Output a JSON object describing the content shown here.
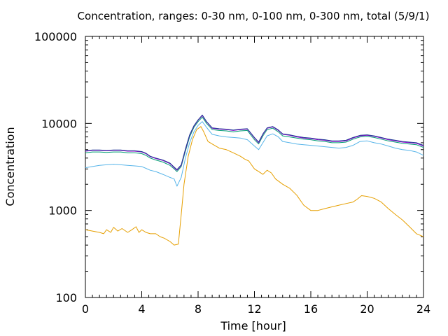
{
  "chart_data": {
    "type": "line",
    "title": "Concentration, ranges: 0-30 nm, 0-100 nm, 0-300 nm, total (5/9/1)",
    "xlabel": "Time [hour]",
    "ylabel": "Concentration",
    "xlim": [
      0,
      24
    ],
    "ylim": [
      100,
      100000
    ],
    "yscale": "log",
    "grid": false,
    "xticks": [
      0,
      4,
      8,
      12,
      16,
      20,
      24
    ],
    "xtick_labels": [
      "0",
      "4",
      "8",
      "12",
      "16",
      "20",
      "24"
    ],
    "yticks": [
      100,
      1000,
      10000,
      100000
    ],
    "ytick_labels": [
      "100",
      "1000",
      "10000",
      "100000"
    ],
    "series": [
      {
        "color": "#e69f00",
        "points": [
          [
            0,
            600
          ],
          [
            0.5,
            580
          ],
          [
            1,
            560
          ],
          [
            1.3,
            540
          ],
          [
            1.5,
            600
          ],
          [
            1.8,
            560
          ],
          [
            2,
            640
          ],
          [
            2.3,
            580
          ],
          [
            2.6,
            620
          ],
          [
            3,
            560
          ],
          [
            3.3,
            600
          ],
          [
            3.6,
            650
          ],
          [
            3.8,
            560
          ],
          [
            4,
            600
          ],
          [
            4.3,
            560
          ],
          [
            4.6,
            540
          ],
          [
            5,
            540
          ],
          [
            5.3,
            500
          ],
          [
            5.6,
            480
          ],
          [
            6,
            440
          ],
          [
            6.3,
            400
          ],
          [
            6.6,
            410
          ],
          [
            6.8,
            900
          ],
          [
            7,
            2000
          ],
          [
            7.3,
            4200
          ],
          [
            7.6,
            6500
          ],
          [
            7.9,
            8500
          ],
          [
            8.2,
            9200
          ],
          [
            8.4,
            8000
          ],
          [
            8.7,
            6200
          ],
          [
            9,
            5800
          ],
          [
            9.5,
            5200
          ],
          [
            10,
            5000
          ],
          [
            10.5,
            4600
          ],
          [
            11,
            4200
          ],
          [
            11.3,
            3900
          ],
          [
            11.6,
            3700
          ],
          [
            12,
            3000
          ],
          [
            12.3,
            2800
          ],
          [
            12.6,
            2600
          ],
          [
            12.9,
            2900
          ],
          [
            13.2,
            2700
          ],
          [
            13.5,
            2300
          ],
          [
            14,
            2000
          ],
          [
            14.5,
            1800
          ],
          [
            15,
            1500
          ],
          [
            15.5,
            1150
          ],
          [
            16,
            1000
          ],
          [
            16.5,
            1000
          ],
          [
            17,
            1050
          ],
          [
            17.5,
            1100
          ],
          [
            18,
            1150
          ],
          [
            18.5,
            1200
          ],
          [
            19,
            1250
          ],
          [
            19.3,
            1350
          ],
          [
            19.6,
            1480
          ],
          [
            20,
            1450
          ],
          [
            20.5,
            1380
          ],
          [
            21,
            1250
          ],
          [
            21.5,
            1050
          ],
          [
            22,
            900
          ],
          [
            22.5,
            780
          ],
          [
            23,
            650
          ],
          [
            23.5,
            540
          ],
          [
            24,
            500
          ]
        ]
      },
      {
        "color": "#56b4e9",
        "points": [
          [
            0,
            3100
          ],
          [
            0.5,
            3200
          ],
          [
            1,
            3300
          ],
          [
            1.5,
            3350
          ],
          [
            2,
            3400
          ],
          [
            2.5,
            3350
          ],
          [
            3,
            3300
          ],
          [
            3.5,
            3250
          ],
          [
            4,
            3200
          ],
          [
            4.3,
            3050
          ],
          [
            4.6,
            2900
          ],
          [
            5,
            2800
          ],
          [
            5.5,
            2600
          ],
          [
            6,
            2400
          ],
          [
            6.3,
            2300
          ],
          [
            6.5,
            1900
          ],
          [
            6.8,
            2400
          ],
          [
            7.1,
            4000
          ],
          [
            7.4,
            6000
          ],
          [
            7.7,
            8000
          ],
          [
            8,
            9500
          ],
          [
            8.3,
            10500
          ],
          [
            8.6,
            9000
          ],
          [
            9,
            7500
          ],
          [
            9.5,
            7200
          ],
          [
            10,
            7000
          ],
          [
            10.5,
            6900
          ],
          [
            11,
            6800
          ],
          [
            11.5,
            6500
          ],
          [
            12,
            5500
          ],
          [
            12.3,
            5000
          ],
          [
            12.6,
            6000
          ],
          [
            12.9,
            7200
          ],
          [
            13.3,
            7600
          ],
          [
            13.7,
            7000
          ],
          [
            14,
            6200
          ],
          [
            14.5,
            6000
          ],
          [
            15,
            5800
          ],
          [
            15.5,
            5700
          ],
          [
            16,
            5600
          ],
          [
            16.5,
            5500
          ],
          [
            17,
            5400
          ],
          [
            17.5,
            5300
          ],
          [
            18,
            5200
          ],
          [
            18.5,
            5300
          ],
          [
            19,
            5600
          ],
          [
            19.5,
            6200
          ],
          [
            20,
            6300
          ],
          [
            20.5,
            6000
          ],
          [
            21,
            5800
          ],
          [
            21.5,
            5500
          ],
          [
            22,
            5200
          ],
          [
            22.5,
            5000
          ],
          [
            23,
            4900
          ],
          [
            23.5,
            4700
          ],
          [
            24,
            4300
          ]
        ]
      },
      {
        "color": "#009e73",
        "points": [
          [
            0,
            4600
          ],
          [
            0.5,
            4700
          ],
          [
            1,
            4700
          ],
          [
            1.5,
            4650
          ],
          [
            2,
            4700
          ],
          [
            2.5,
            4700
          ],
          [
            3,
            4600
          ],
          [
            3.5,
            4600
          ],
          [
            4,
            4500
          ],
          [
            4.3,
            4300
          ],
          [
            4.6,
            4000
          ],
          [
            5,
            3800
          ],
          [
            5.5,
            3600
          ],
          [
            6,
            3300
          ],
          [
            6.3,
            3000
          ],
          [
            6.5,
            2800
          ],
          [
            6.8,
            3200
          ],
          [
            7.1,
            4800
          ],
          [
            7.4,
            7000
          ],
          [
            7.7,
            9000
          ],
          [
            8,
            10500
          ],
          [
            8.3,
            11800
          ],
          [
            8.6,
            10000
          ],
          [
            9,
            8500
          ],
          [
            9.5,
            8300
          ],
          [
            10,
            8200
          ],
          [
            10.5,
            8000
          ],
          [
            11,
            8200
          ],
          [
            11.5,
            8300
          ],
          [
            12,
            6500
          ],
          [
            12.3,
            5800
          ],
          [
            12.6,
            7200
          ],
          [
            12.9,
            8500
          ],
          [
            13.3,
            8800
          ],
          [
            13.7,
            8000
          ],
          [
            14,
            7200
          ],
          [
            14.5,
            7000
          ],
          [
            15,
            6800
          ],
          [
            15.5,
            6600
          ],
          [
            16,
            6500
          ],
          [
            16.5,
            6300
          ],
          [
            17,
            6200
          ],
          [
            17.5,
            6000
          ],
          [
            18,
            6000
          ],
          [
            18.5,
            6100
          ],
          [
            19,
            6600
          ],
          [
            19.5,
            7000
          ],
          [
            20,
            7100
          ],
          [
            20.5,
            6900
          ],
          [
            21,
            6600
          ],
          [
            21.5,
            6300
          ],
          [
            22,
            6100
          ],
          [
            22.5,
            5900
          ],
          [
            23,
            5800
          ],
          [
            23.5,
            5700
          ],
          [
            24,
            5300
          ]
        ]
      },
      {
        "color": "#9400d3",
        "points": [
          [
            0,
            4800
          ],
          [
            0.5,
            4900
          ],
          [
            1,
            4900
          ],
          [
            1.5,
            4850
          ],
          [
            2,
            4900
          ],
          [
            2.5,
            4900
          ],
          [
            3,
            4800
          ],
          [
            3.5,
            4800
          ],
          [
            4,
            4700
          ],
          [
            4.3,
            4500
          ],
          [
            4.6,
            4150
          ],
          [
            5,
            3950
          ],
          [
            5.5,
            3750
          ],
          [
            6,
            3450
          ],
          [
            6.3,
            3100
          ],
          [
            6.5,
            2900
          ],
          [
            6.8,
            3300
          ],
          [
            7.1,
            5000
          ],
          [
            7.4,
            7300
          ],
          [
            7.7,
            9300
          ],
          [
            8,
            10900
          ],
          [
            8.3,
            12300
          ],
          [
            8.6,
            10400
          ],
          [
            9,
            8800
          ],
          [
            9.5,
            8600
          ],
          [
            10,
            8500
          ],
          [
            10.5,
            8300
          ],
          [
            11,
            8500
          ],
          [
            11.5,
            8600
          ],
          [
            12,
            6800
          ],
          [
            12.3,
            6000
          ],
          [
            12.6,
            7500
          ],
          [
            12.9,
            8800
          ],
          [
            13.3,
            9100
          ],
          [
            13.7,
            8300
          ],
          [
            14,
            7500
          ],
          [
            14.5,
            7300
          ],
          [
            15,
            7000
          ],
          [
            15.5,
            6800
          ],
          [
            16,
            6700
          ],
          [
            16.5,
            6500
          ],
          [
            17,
            6400
          ],
          [
            17.5,
            6200
          ],
          [
            18,
            6200
          ],
          [
            18.5,
            6300
          ],
          [
            19,
            6800
          ],
          [
            19.5,
            7200
          ],
          [
            20,
            7300
          ],
          [
            20.5,
            7100
          ],
          [
            21,
            6800
          ],
          [
            21.5,
            6500
          ],
          [
            22,
            6300
          ],
          [
            22.5,
            6100
          ],
          [
            23,
            6000
          ],
          [
            23.5,
            5900
          ],
          [
            24,
            5500
          ]
        ]
      },
      {
        "color": "#1f3a93",
        "points": [
          [
            0,
            4850
          ],
          [
            0.5,
            4950
          ],
          [
            1,
            4950
          ],
          [
            1.5,
            4900
          ],
          [
            2,
            4950
          ],
          [
            2.5,
            4950
          ],
          [
            3,
            4850
          ],
          [
            3.5,
            4850
          ],
          [
            4,
            4750
          ],
          [
            4.3,
            4550
          ],
          [
            4.6,
            4200
          ],
          [
            5,
            4000
          ],
          [
            5.5,
            3800
          ],
          [
            6,
            3500
          ],
          [
            6.3,
            3150
          ],
          [
            6.5,
            2950
          ],
          [
            6.8,
            3350
          ],
          [
            7.1,
            5100
          ],
          [
            7.4,
            7400
          ],
          [
            7.7,
            9400
          ],
          [
            8,
            11000
          ],
          [
            8.3,
            12500
          ],
          [
            8.6,
            10500
          ],
          [
            9,
            8900
          ],
          [
            9.5,
            8700
          ],
          [
            10,
            8600
          ],
          [
            10.5,
            8400
          ],
          [
            11,
            8600
          ],
          [
            11.5,
            8700
          ],
          [
            12,
            6900
          ],
          [
            12.3,
            6100
          ],
          [
            12.6,
            7600
          ],
          [
            12.9,
            8900
          ],
          [
            13.3,
            9200
          ],
          [
            13.7,
            8400
          ],
          [
            14,
            7600
          ],
          [
            14.5,
            7400
          ],
          [
            15,
            7100
          ],
          [
            15.5,
            6900
          ],
          [
            16,
            6800
          ],
          [
            16.5,
            6600
          ],
          [
            17,
            6500
          ],
          [
            17.5,
            6300
          ],
          [
            18,
            6300
          ],
          [
            18.5,
            6400
          ],
          [
            19,
            6900
          ],
          [
            19.5,
            7300
          ],
          [
            20,
            7400
          ],
          [
            20.5,
            7200
          ],
          [
            21,
            6900
          ],
          [
            21.5,
            6600
          ],
          [
            22,
            6400
          ],
          [
            22.5,
            6200
          ],
          [
            23,
            6100
          ],
          [
            23.5,
            6000
          ],
          [
            24,
            5600
          ]
        ]
      }
    ]
  }
}
